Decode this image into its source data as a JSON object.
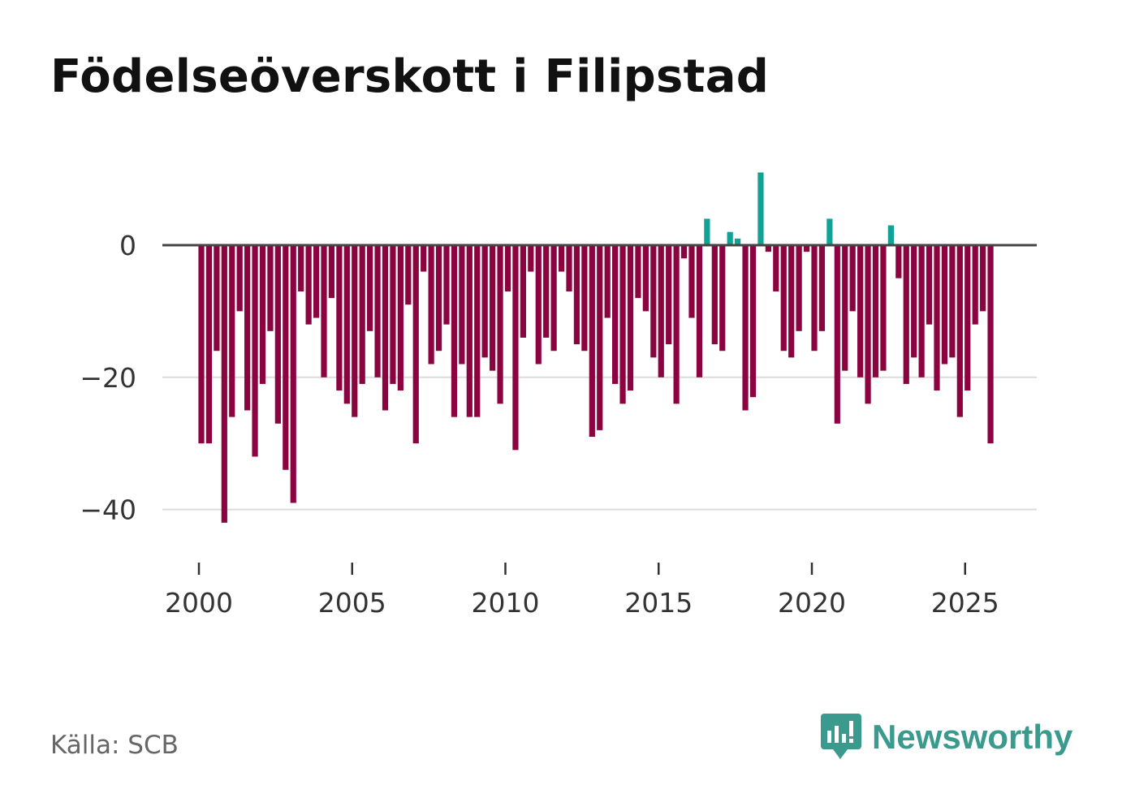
{
  "title": "Födelseöverskott i Filipstad",
  "source": "Källa: SCB",
  "brand": "Newsworthy",
  "colors": {
    "positive": "#10a294",
    "negative": "#8b0440",
    "zero_line": "#444444",
    "grid": "#dcdcdc"
  },
  "chart_data": {
    "type": "bar",
    "title": "Födelseöverskott i Filipstad",
    "xlabel": "",
    "ylabel": "",
    "ylim": [
      -48,
      13
    ],
    "xlim": [
      1999.5,
      2027.3
    ],
    "y_ticks": [
      0,
      -20,
      -40
    ],
    "y_tick_labels": [
      "0",
      "−20",
      "−40"
    ],
    "x_ticks": [
      2000,
      2005,
      2010,
      2015,
      2020,
      2025
    ],
    "x_tick_labels": [
      "2000",
      "2005",
      "2010",
      "2015",
      "2020",
      "2025"
    ],
    "start": 2000.0,
    "step": 0.25,
    "frequency": "quarterly",
    "values": [
      -30,
      -30,
      -16,
      -42,
      -26,
      -10,
      -25,
      -32,
      -21,
      -13,
      -27,
      -34,
      -39,
      -7,
      -12,
      -11,
      -20,
      -8,
      -22,
      -24,
      -26,
      -21,
      -13,
      -20,
      -25,
      -21,
      -22,
      -9,
      -30,
      -4,
      -18,
      -16,
      -12,
      -26,
      -18,
      -26,
      -26,
      -17,
      -19,
      -24,
      -7,
      -31,
      -14,
      -4,
      -18,
      -14,
      -16,
      -4,
      -7,
      -15,
      -16,
      -29,
      -28,
      -11,
      -21,
      -24,
      -22,
      -8,
      -10,
      -17,
      -20,
      -15,
      -24,
      -2,
      -11,
      -20,
      4,
      -15,
      -16,
      2,
      1,
      -25,
      -23,
      11,
      -1,
      -7,
      -16,
      -17,
      -13,
      -1,
      -16,
      -13,
      4,
      -27,
      -19,
      -10,
      -20,
      -24,
      -20,
      -19,
      3,
      -5,
      -21,
      -17,
      -20,
      -12,
      -22,
      -18,
      -17,
      -26,
      -22,
      -12,
      -10,
      -30
    ]
  }
}
